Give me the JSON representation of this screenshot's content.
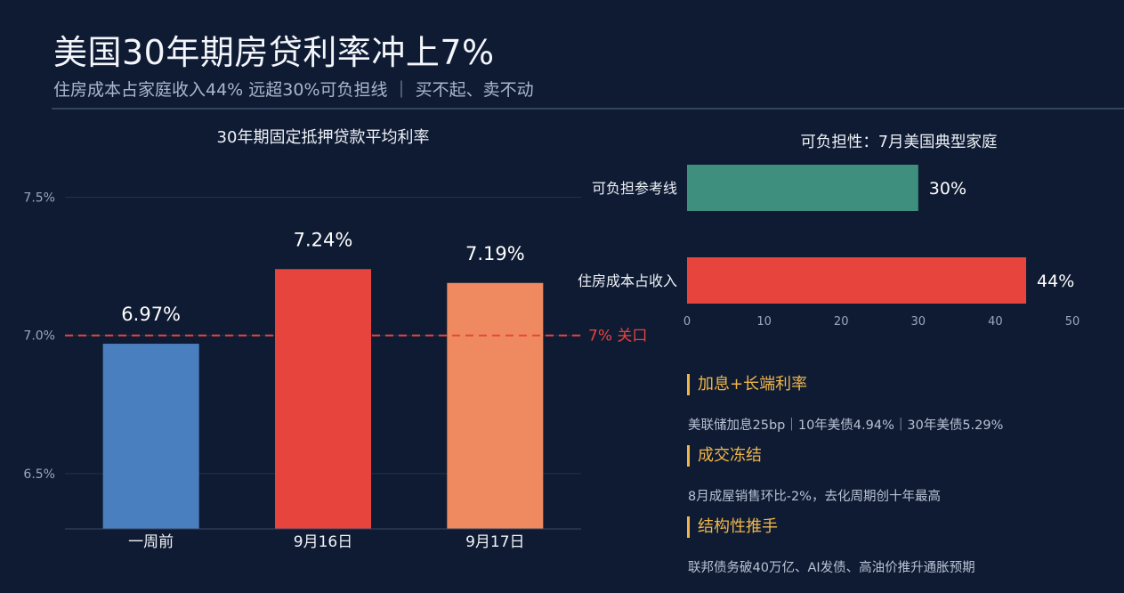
{
  "header": {
    "title": "美国30年期房贷利率冲上7%",
    "subtitle": "住房成本占家庭收入44%  远超30%可负担线  ｜  买不起、卖不动"
  },
  "chart_data": [
    {
      "type": "bar",
      "title": "30年期固定抵押贷款平均利率",
      "categories": [
        "一周前",
        "9月16日",
        "9月17日"
      ],
      "values": [
        6.97,
        7.24,
        7.19
      ],
      "data_labels": [
        "6.97%",
        "7.24%",
        "7.19%"
      ],
      "colors": [
        "#4a7fbf",
        "#e8443e",
        "#ef8a60"
      ],
      "ylim": [
        6.3,
        7.65
      ],
      "yticks": [
        6.5,
        7.0,
        7.5
      ],
      "ytick_labels": [
        "6.5%",
        "7.0%",
        "7.5%"
      ],
      "grid": true,
      "reference_line": {
        "value": 7.0,
        "label": "7% 关口",
        "color": "#e8443e"
      }
    },
    {
      "type": "bar",
      "orientation": "horizontal",
      "title": "可负担性：7月美国典型家庭",
      "categories": [
        "可负担参考线",
        "住房成本占收入"
      ],
      "values": [
        30,
        44
      ],
      "data_labels": [
        "30%",
        "44%"
      ],
      "colors": [
        "#3e8f7d",
        "#e8443e"
      ],
      "xlim": [
        0,
        50
      ],
      "xticks": [
        0,
        10,
        20,
        30,
        40,
        50
      ],
      "xtick_labels": [
        "0",
        "10",
        "20",
        "30",
        "40",
        "50"
      ]
    }
  ],
  "notes": [
    {
      "heading": "加息+长端利率",
      "text": "美联储加息25bp｜10年美债4.94%｜30年美债5.29%"
    },
    {
      "heading": "成交冻结",
      "text": "8月成屋销售环比-2%，去化周期创十年最高"
    },
    {
      "heading": "结构性推手",
      "text": "联邦债务破40万亿、AI发债、高油价推升通胀预期"
    }
  ],
  "colors": {
    "background": "#0e1b33",
    "accent": "#f0b64a",
    "grid": "#22324d"
  }
}
